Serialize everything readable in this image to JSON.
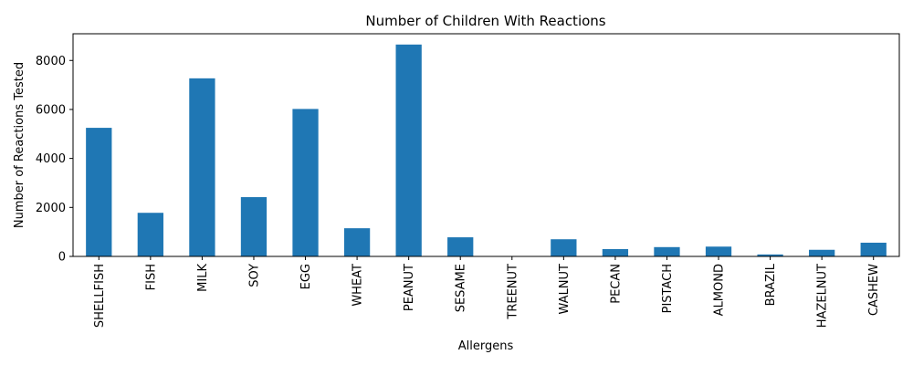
{
  "chart_data": {
    "type": "bar",
    "title": "Number of Children With Reactions",
    "xlabel": "Allergens",
    "ylabel": "Number of Reactions Tested",
    "categories": [
      "SHELLFISH",
      "FISH",
      "MILK",
      "SOY",
      "EGG",
      "WHEAT",
      "PEANUT",
      "SESAME",
      "TREENUT",
      "WALNUT",
      "PECAN",
      "PISTACH",
      "ALMOND",
      "BRAZIL",
      "HAZELNUT",
      "CASHEW"
    ],
    "values": [
      5250,
      1780,
      7270,
      2420,
      6020,
      1150,
      8650,
      780,
      10,
      700,
      300,
      380,
      400,
      80,
      270,
      560
    ],
    "ylim": [
      0,
      9090
    ],
    "yticks": [
      0,
      2000,
      4000,
      6000,
      8000
    ],
    "grid": false,
    "bar_color": "#1f77b4"
  }
}
